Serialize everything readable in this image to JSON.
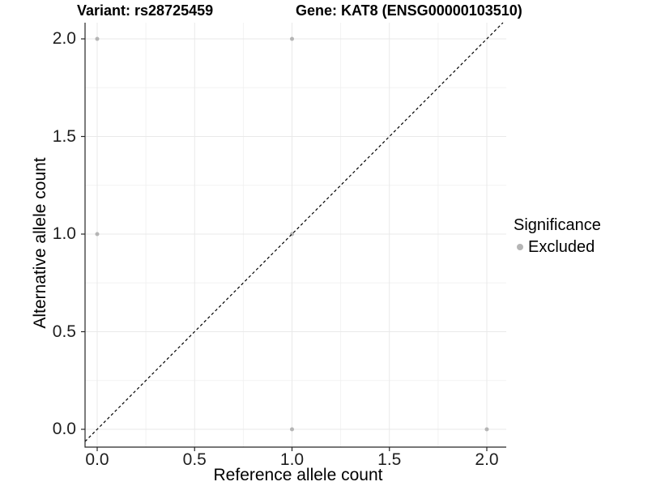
{
  "titles": {
    "left": "Variant: rs28725459",
    "right": "Gene: KAT8 (ENSG00000103510)"
  },
  "legend": {
    "title": "Significance",
    "items": [
      {
        "label": "Excluded",
        "color": "#b5b5b5"
      }
    ]
  },
  "colors": {
    "background": "#ffffff",
    "point": "#b5b5b5",
    "grid_major": "#e9e9e9",
    "grid_minor": "#f2f2f2",
    "axis_line": "#262626",
    "dashed_line": "#000000",
    "tick_text": "#1f1f1f"
  },
  "chart_data": {
    "type": "scatter",
    "title": "Variant: rs28725459    Gene: KAT8 (ENSG00000103510)",
    "xlabel": "Reference allele count",
    "ylabel": "Alternative allele count",
    "x_ticks": [
      "0.0",
      "0.5",
      "1.0",
      "1.5",
      "2.0"
    ],
    "x_tick_values": [
      0,
      0.5,
      1,
      1.5,
      2
    ],
    "x_minor_values": [
      0.25,
      0.75,
      1.25,
      1.75
    ],
    "y_ticks": [
      "0.0",
      "0.5",
      "1.0",
      "1.5",
      "2.0"
    ],
    "y_tick_values": [
      0,
      0.5,
      1,
      1.5,
      2
    ],
    "y_minor_values": [
      0.25,
      0.75,
      1.25,
      1.75
    ],
    "xlim": [
      -0.06,
      2.1
    ],
    "ylim": [
      -0.09,
      2.08
    ],
    "grid": true,
    "legend_position": "right",
    "series": [
      {
        "name": "Excluded",
        "color": "#b5b5b5",
        "points": [
          [
            0,
            1
          ],
          [
            0,
            2
          ],
          [
            1,
            0
          ],
          [
            1,
            1
          ],
          [
            1,
            2
          ],
          [
            2,
            0
          ]
        ]
      }
    ],
    "reference_line": {
      "type": "identity",
      "slope": 1,
      "intercept": 0,
      "style": "dashed",
      "color": "#000000"
    }
  }
}
